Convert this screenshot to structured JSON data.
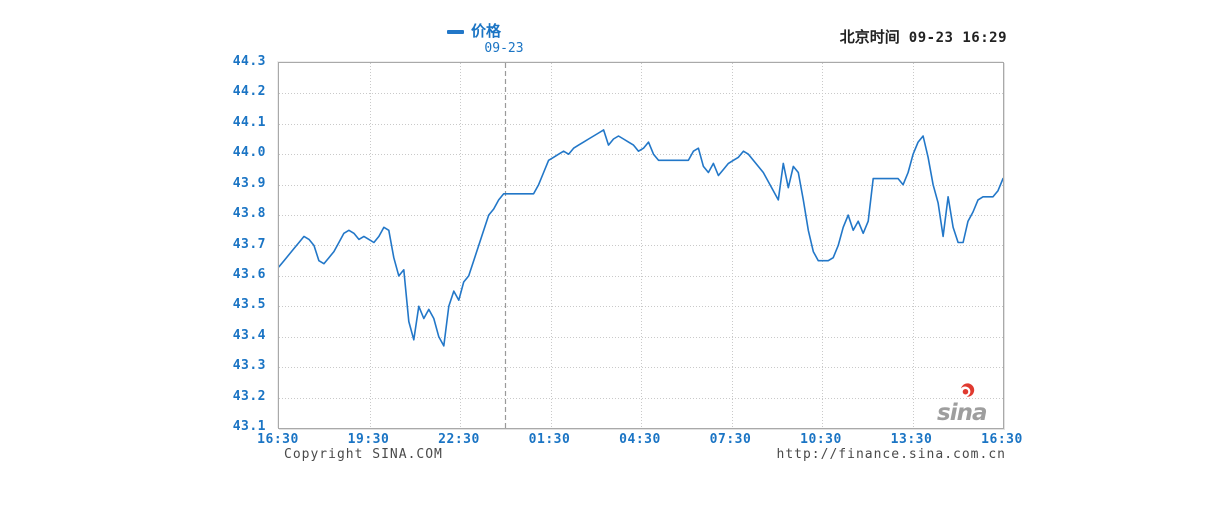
{
  "legend": {
    "series_label": "价格",
    "date_label": "09-23"
  },
  "header": {
    "timezone_label": "北京时间",
    "datetime": "09-23 16:29"
  },
  "footer": {
    "copyright": "Copyright  SINA.COM",
    "url": "http://finance.sina.com.cn"
  },
  "watermark": {
    "text": "sina"
  },
  "colors": {
    "line": "#2277c8",
    "axis_text": "#1a74c4",
    "time_text": "#222222",
    "footer_text": "#4a4a4a",
    "grid": "#c9c9c9",
    "divider": "#9a9a9a",
    "border": "#a9a9a9",
    "watermark": "#9e9e9e",
    "flame": "#e0392f"
  },
  "chart_data": {
    "type": "line",
    "title": "价格",
    "xlabel": "",
    "ylabel": "",
    "ylim": [
      43.1,
      44.3
    ],
    "x_span_hours": 24,
    "sample_interval_minutes": 10,
    "grid": true,
    "legend_position": "top-center",
    "x_tick_labels": [
      "16:30",
      "19:30",
      "22:30",
      "01:30",
      "04:30",
      "07:30",
      "10:30",
      "13:30",
      "16:30"
    ],
    "y_tick_labels": [
      "44.3",
      "44.2",
      "44.1",
      "44.0",
      "43.9",
      "43.8",
      "43.7",
      "43.6",
      "43.5",
      "43.4",
      "43.3",
      "43.2",
      "43.1"
    ],
    "y_tick_values": [
      44.3,
      44.2,
      44.1,
      44.0,
      43.9,
      43.8,
      43.7,
      43.6,
      43.5,
      43.4,
      43.3,
      43.2,
      43.1
    ],
    "day_divider": {
      "label": "09-23",
      "fraction": 0.3125,
      "style": "dashed"
    },
    "series": [
      {
        "name": "价格",
        "values": [
          43.63,
          43.65,
          43.67,
          43.69,
          43.71,
          43.73,
          43.72,
          43.7,
          43.65,
          43.64,
          43.66,
          43.68,
          43.71,
          43.74,
          43.75,
          43.74,
          43.72,
          43.73,
          43.72,
          43.71,
          43.73,
          43.76,
          43.75,
          43.66,
          43.6,
          43.62,
          43.45,
          43.39,
          43.5,
          43.46,
          43.49,
          43.46,
          43.4,
          43.37,
          43.5,
          43.55,
          43.52,
          43.58,
          43.6,
          43.65,
          43.7,
          43.75,
          43.8,
          43.82,
          43.85,
          43.87,
          43.87,
          43.87,
          43.87,
          43.87,
          43.87,
          43.87,
          43.9,
          43.94,
          43.98,
          43.99,
          44.0,
          44.01,
          44.0,
          44.02,
          44.03,
          44.04,
          44.05,
          44.06,
          44.07,
          44.08,
          44.03,
          44.05,
          44.06,
          44.05,
          44.04,
          44.03,
          44.01,
          44.02,
          44.04,
          44.0,
          43.98,
          43.98,
          43.98,
          43.98,
          43.98,
          43.98,
          43.98,
          44.01,
          44.02,
          43.96,
          43.94,
          43.97,
          43.93,
          43.95,
          43.97,
          43.98,
          43.99,
          44.01,
          44.0,
          43.98,
          43.96,
          43.94,
          43.91,
          43.88,
          43.85,
          43.97,
          43.89,
          43.96,
          43.94,
          43.85,
          43.75,
          43.68,
          43.65,
          43.65,
          43.65,
          43.66,
          43.7,
          43.76,
          43.8,
          43.75,
          43.78,
          43.74,
          43.78,
          43.92,
          43.92,
          43.92,
          43.92,
          43.92,
          43.92,
          43.9,
          43.94,
          44.0,
          44.04,
          44.06,
          43.99,
          43.9,
          43.84,
          43.73,
          43.86,
          43.76,
          43.71,
          43.71,
          43.78,
          43.81,
          43.85,
          43.86,
          43.86,
          43.86,
          43.88,
          43.92
        ]
      }
    ]
  }
}
